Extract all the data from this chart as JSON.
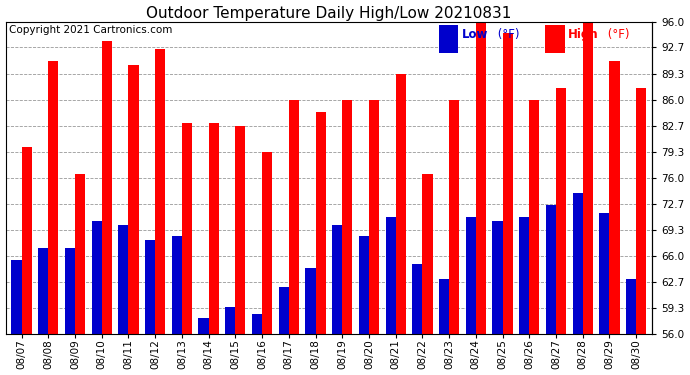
{
  "title": "Outdoor Temperature Daily High/Low 20210831",
  "copyright": "Copyright 2021 Cartronics.com",
  "dates": [
    "08/07",
    "08/08",
    "08/09",
    "08/10",
    "08/11",
    "08/12",
    "08/13",
    "08/14",
    "08/15",
    "08/16",
    "08/17",
    "08/18",
    "08/19",
    "08/20",
    "08/21",
    "08/22",
    "08/23",
    "08/24",
    "08/25",
    "08/26",
    "08/27",
    "08/28",
    "08/29",
    "08/30"
  ],
  "high": [
    80.0,
    91.0,
    76.5,
    93.5,
    90.5,
    92.5,
    83.0,
    83.0,
    82.7,
    79.3,
    86.0,
    84.5,
    86.0,
    86.0,
    89.3,
    76.5,
    86.0,
    96.0,
    94.5,
    86.0,
    87.5,
    96.0,
    91.0,
    87.5
  ],
  "low": [
    65.5,
    67.0,
    67.0,
    70.5,
    70.0,
    68.0,
    68.5,
    58.0,
    59.5,
    58.5,
    62.0,
    64.5,
    70.0,
    68.5,
    71.0,
    65.0,
    63.0,
    71.0,
    70.5,
    71.0,
    72.5,
    74.0,
    71.5,
    63.0
  ],
  "ymin": 56.0,
  "ymax": 96.0,
  "yticks": [
    56.0,
    59.3,
    62.7,
    66.0,
    69.3,
    72.7,
    76.0,
    79.3,
    82.7,
    86.0,
    89.3,
    92.7,
    96.0
  ],
  "bar_width": 0.38,
  "high_color": "#ff0000",
  "low_color": "#0000cc",
  "bg_color": "#ffffff",
  "grid_color": "#999999",
  "title_fontsize": 11,
  "tick_fontsize": 7.5,
  "copyright_fontsize": 7.5,
  "legend_fontsize": 8.5
}
